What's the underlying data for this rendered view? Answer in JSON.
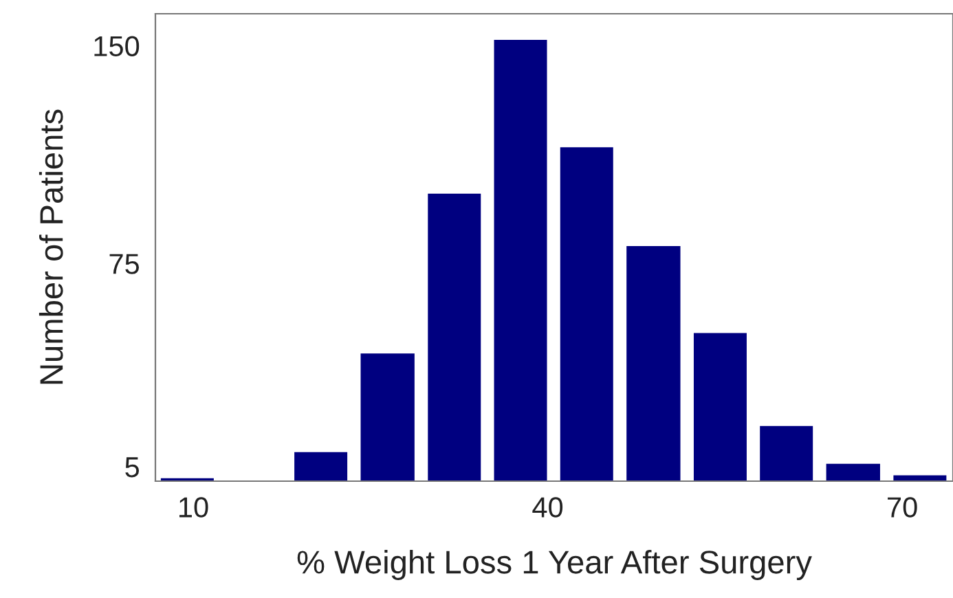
{
  "chart_data": {
    "type": "histogram",
    "xlabel": "% Weight Loss 1 Year After Surgery",
    "ylabel": "Number of Patients",
    "bins": [
      6.7,
      12.3,
      18.0,
      23.6,
      29.3,
      34.9,
      40.5,
      46.1,
      51.8,
      57.4,
      63.0,
      68.7,
      74.3
    ],
    "values": [
      1,
      0,
      10,
      44,
      99,
      152,
      115,
      81,
      51,
      19,
      6,
      2
    ],
    "color": "#000080",
    "xlim": [
      6.8,
      74.3
    ],
    "xticks": [
      10,
      40,
      70
    ],
    "ylim": [
      0,
      161
    ],
    "yticks": [
      5,
      75,
      150
    ],
    "grid": false
  }
}
